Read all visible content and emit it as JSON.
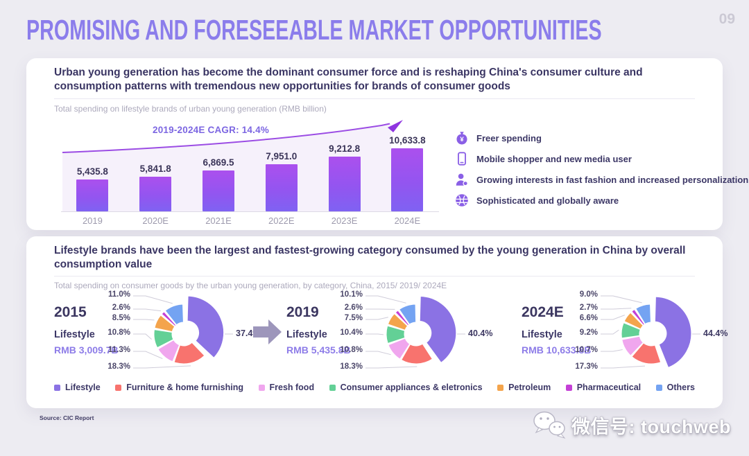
{
  "page": {
    "title": "PROMISING AND FORESEEABLE MARKET OPPORTUNITIES",
    "page_number": "09",
    "source": "Source: CIC Report",
    "watermark": "微信号: touchweb"
  },
  "colors": {
    "title_purple": "#8b7deb",
    "accent_purple": "#7c66e2",
    "navy_text": "#3a3563",
    "bar_gradient_top": "#ab50ee",
    "bar_gradient_bottom": "#7f62f2",
    "trend_line": "#9b4ce4",
    "category_palette": {
      "lifestyle": "#8b72e4",
      "furniture": "#f8736e",
      "fresh_food": "#f0a6ee",
      "appliances": "#63d096",
      "petroleum": "#f4a44c",
      "pharmaceutical": "#c43fd6",
      "others": "#74a3f2"
    }
  },
  "spending_card": {
    "headline": "Urban young generation has become the dominant consumer force and is reshaping China's consumer culture and consumption patterns with tremendous new opportunities for brands of consumer goods",
    "highlights": [
      {
        "icon": "money-bag-icon",
        "label": "Freer spending"
      },
      {
        "icon": "phone-icon",
        "label": "Mobile shopper and new media user"
      },
      {
        "icon": "person-icon",
        "label": "Growing interests in fast fashion and increased personalization"
      },
      {
        "icon": "globe-icon",
        "label": "Sophisticated and globally aware"
      }
    ]
  },
  "category_card": {
    "headline": "Lifestyle brands have been the largest and fastest-growing category consumed by the young generation in China by overall consumption value"
  },
  "legend": [
    {
      "label": "Lifestyle",
      "color_key": "lifestyle"
    },
    {
      "label": "Furniture & home furnishing",
      "color_key": "furniture"
    },
    {
      "label": "Fresh food",
      "color_key": "fresh_food"
    },
    {
      "label": "Consumer appliances & eletronics",
      "color_key": "appliances"
    },
    {
      "label": "Petroleum",
      "color_key": "petroleum"
    },
    {
      "label": "Pharmaceutical",
      "color_key": "pharmaceutical"
    },
    {
      "label": "Others",
      "color_key": "others"
    }
  ],
  "chart_data": [
    {
      "type": "bar",
      "title": "Total spending on lifestyle brands of urban young generation (RMB billion)",
      "categories": [
        "2019",
        "2020E",
        "2021E",
        "2022E",
        "2023E",
        "2024E"
      ],
      "values": [
        5435.8,
        5841.8,
        6869.5,
        7951.0,
        9212.8,
        10633.8
      ],
      "value_labels": [
        "5,435.8",
        "5,841.8",
        "6,869.5",
        "7,951.0",
        "9,212.8",
        "10,633.8"
      ],
      "annotation": "2019-2024E CAGR: 14.4%",
      "xlabel": "",
      "ylabel": "RMB billion",
      "ylim": [
        0,
        11000
      ],
      "grid": false,
      "legend_position": "none"
    },
    {
      "type": "pie",
      "title": "Total spending on consumer goods by the urban young generation, by category, China, 2015/ 2019/ 2024E",
      "year": "2015",
      "group_label": "Lifestyle",
      "group_value": "RMB 3,009.7B",
      "segments": [
        {
          "name": "Lifestyle",
          "pct": 37.4,
          "color_key": "lifestyle"
        },
        {
          "name": "Furniture & home furnishing",
          "pct": 18.3,
          "color_key": "furniture"
        },
        {
          "name": "Fresh food",
          "pct": 11.3,
          "color_key": "fresh_food"
        },
        {
          "name": "Consumer appliances & eletronics",
          "pct": 10.8,
          "color_key": "appliances"
        },
        {
          "name": "Petroleum",
          "pct": 8.5,
          "color_key": "petroleum"
        },
        {
          "name": "Pharmaceutical",
          "pct": 2.6,
          "color_key": "pharmaceutical"
        },
        {
          "name": "Others",
          "pct": 11.0,
          "color_key": "others"
        }
      ]
    },
    {
      "type": "pie",
      "year": "2019",
      "group_label": "Lifestyle",
      "group_value": "RMB 5,435.8B",
      "segments": [
        {
          "name": "Lifestyle",
          "pct": 40.4,
          "color_key": "lifestyle"
        },
        {
          "name": "Furniture & home furnishing",
          "pct": 18.3,
          "color_key": "furniture"
        },
        {
          "name": "Fresh food",
          "pct": 10.8,
          "color_key": "fresh_food"
        },
        {
          "name": "Consumer appliances & eletronics",
          "pct": 10.4,
          "color_key": "appliances"
        },
        {
          "name": "Petroleum",
          "pct": 7.5,
          "color_key": "petroleum"
        },
        {
          "name": "Pharmaceutical",
          "pct": 2.6,
          "color_key": "pharmaceutical"
        },
        {
          "name": "Others",
          "pct": 10.1,
          "color_key": "others"
        }
      ]
    },
    {
      "type": "pie",
      "year": "2024E",
      "group_label": "Lifestyle",
      "group_value": "RMB 10,633.8B",
      "segments": [
        {
          "name": "Lifestyle",
          "pct": 44.4,
          "color_key": "lifestyle"
        },
        {
          "name": "Furniture & home furnishing",
          "pct": 17.3,
          "color_key": "furniture"
        },
        {
          "name": "Fresh food",
          "pct": 10.7,
          "color_key": "fresh_food"
        },
        {
          "name": "Consumer appliances & eletronics",
          "pct": 9.2,
          "color_key": "appliances"
        },
        {
          "name": "Petroleum",
          "pct": 6.6,
          "color_key": "petroleum"
        },
        {
          "name": "Pharmaceutical",
          "pct": 2.7,
          "color_key": "pharmaceutical"
        },
        {
          "name": "Others",
          "pct": 9.0,
          "color_key": "others"
        }
      ]
    }
  ]
}
